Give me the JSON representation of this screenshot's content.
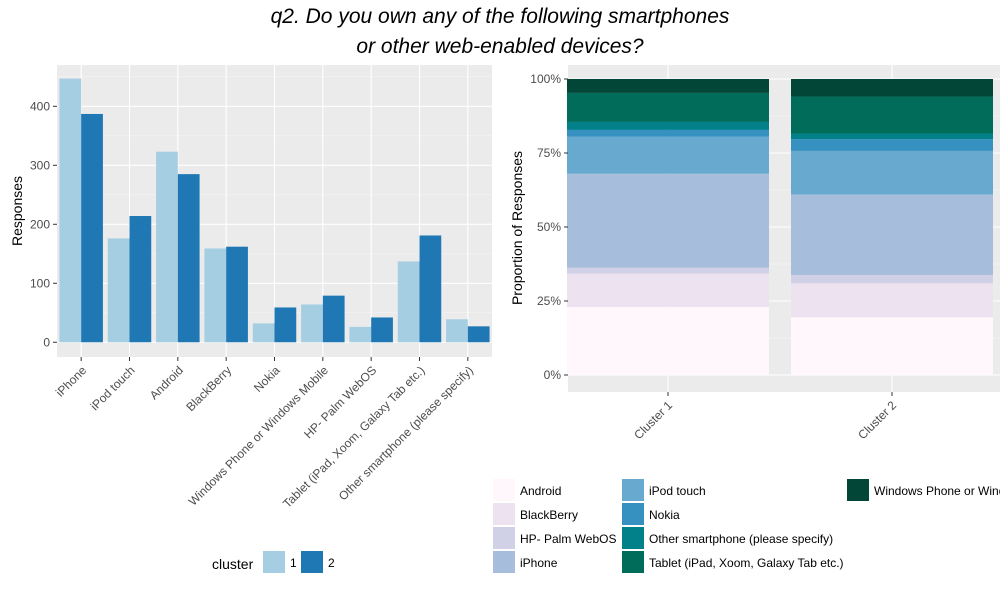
{
  "title_lines": [
    "q2. Do you own any of the following smartphones",
    "or other web-enabled devices?"
  ],
  "chart_data": [
    {
      "type": "bar",
      "ylabel": "Responses",
      "xlabel": "",
      "categories": [
        "iPhone",
        "iPod touch",
        "Android",
        "BlackBerry",
        "Nokia",
        "Windows Phone or Windows Mobile",
        "HP- Palm WebOS",
        "Tablet (iPad, Xoom, Galaxy Tab etc.)",
        "Other smartphone (please specify)"
      ],
      "series": [
        {
          "name": "1",
          "color": "#a6cee3",
          "values": [
            447,
            176,
            323,
            159,
            32,
            64,
            26,
            137,
            39
          ]
        },
        {
          "name": "2",
          "color": "#1f78b4",
          "values": [
            387,
            214,
            285,
            162,
            59,
            79,
            42,
            181,
            27
          ]
        }
      ],
      "ylim": [
        -25,
        470
      ],
      "yticks": [
        0,
        100,
        200,
        300,
        400
      ],
      "grid": true,
      "legend": {
        "title": "cluster",
        "position": "bottom"
      }
    },
    {
      "type": "bar",
      "stacked": true,
      "ylabel": "Proportion of Responses",
      "xlabel": "",
      "categories": [
        "Cluster 1",
        "Cluster 2"
      ],
      "yticks": [
        "0%",
        "25%",
        "50%",
        "75%",
        "100%"
      ],
      "series": [
        {
          "name": "Android",
          "color": "#fff7fb",
          "values": [
            0.23,
            0.195
          ]
        },
        {
          "name": "BlackBerry",
          "color": "#ece2f0",
          "values": [
            0.113,
            0.115
          ]
        },
        {
          "name": "HP- Palm WebOS",
          "color": "#d0d1e6",
          "values": [
            0.02,
            0.028
          ]
        },
        {
          "name": "iPhone",
          "color": "#a6bddb",
          "values": [
            0.317,
            0.272
          ]
        },
        {
          "name": "iPod touch",
          "color": "#67a9cf",
          "values": [
            0.125,
            0.147
          ]
        },
        {
          "name": "Nokia",
          "color": "#3690c0",
          "values": [
            0.023,
            0.04
          ]
        },
        {
          "name": "Other smartphone (please specify)",
          "color": "#02818a",
          "values": [
            0.027,
            0.019
          ]
        },
        {
          "name": "Tablet (iPad, Xoom, Galaxy Tab etc.)",
          "color": "#016c59",
          "values": [
            0.098,
            0.125
          ]
        },
        {
          "name": "Windows Phone or Windows Mobile",
          "color": "#014636",
          "values": [
            0.047,
            0.059
          ]
        }
      ],
      "grid": true,
      "legend": {
        "position": "bottom"
      }
    }
  ]
}
